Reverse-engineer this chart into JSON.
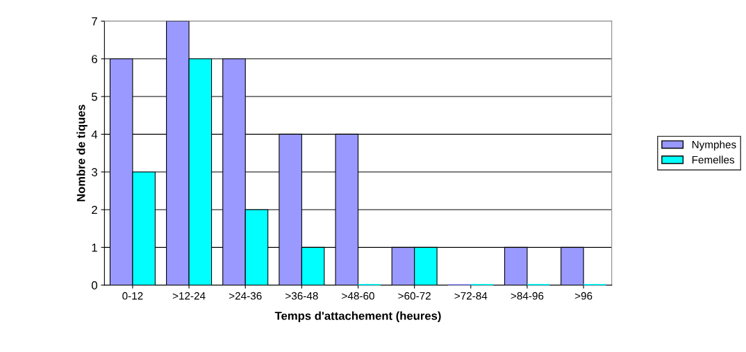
{
  "chart_data": {
    "type": "bar",
    "xlabel": "Temps d'attachement (heures)",
    "ylabel": "Nombre de tiques",
    "categories": [
      "0-12",
      ">12-24",
      ">24-36",
      ">36-48",
      ">48-60",
      ">60-72",
      ">72-84",
      ">84-96",
      ">96"
    ],
    "series": [
      {
        "name": "Nymphes",
        "color": "#9999ff",
        "values": [
          6,
          7,
          6,
          4,
          4,
          1,
          0,
          1,
          1
        ]
      },
      {
        "name": "Femelles",
        "color": "#00ffff",
        "values": [
          3,
          6,
          2,
          1,
          0,
          1,
          0,
          0,
          0
        ]
      }
    ],
    "ylim": [
      0,
      7
    ],
    "yticks": [
      0,
      1,
      2,
      3,
      4,
      5,
      6,
      7
    ],
    "grid": "y",
    "legend": "right"
  }
}
